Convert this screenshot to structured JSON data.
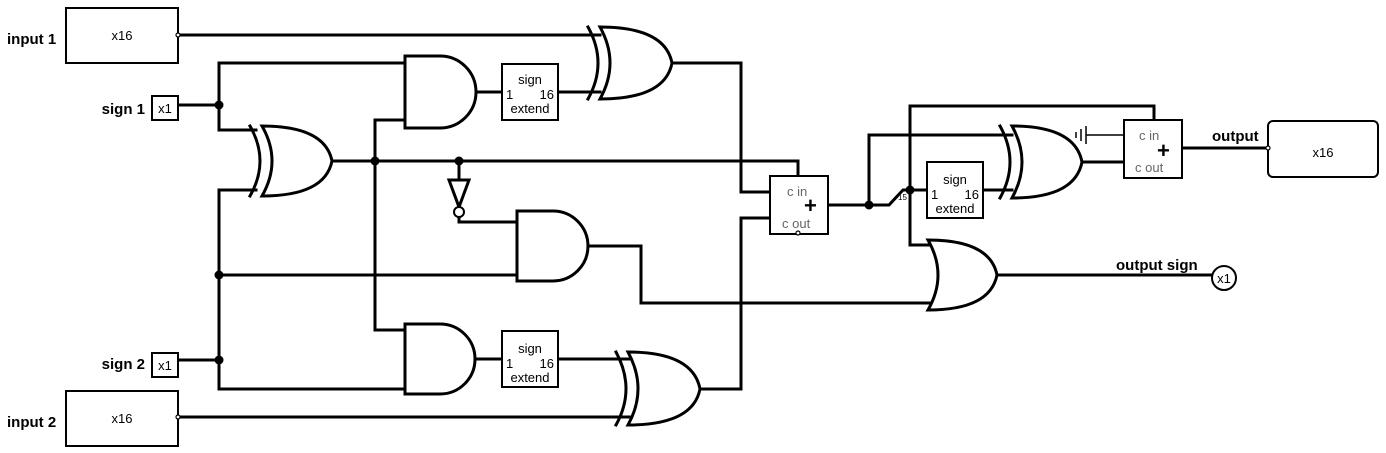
{
  "labels": {
    "input1": "input 1",
    "input2": "input 2",
    "sign1": "sign 1",
    "sign2": "sign 2",
    "output": "output",
    "output_sign": "output sign"
  },
  "io_boxes": {
    "input1": "x16",
    "input2": "x16",
    "sign1": "x1",
    "sign2": "x1",
    "output": "x16",
    "output_sign": "x1"
  },
  "sign_extend": {
    "top": "sign",
    "left": "1",
    "right": "16",
    "bottom": "extend"
  },
  "adder": {
    "cin": "c in",
    "cout": "c out",
    "plus": "+"
  },
  "splitter_index": "15"
}
